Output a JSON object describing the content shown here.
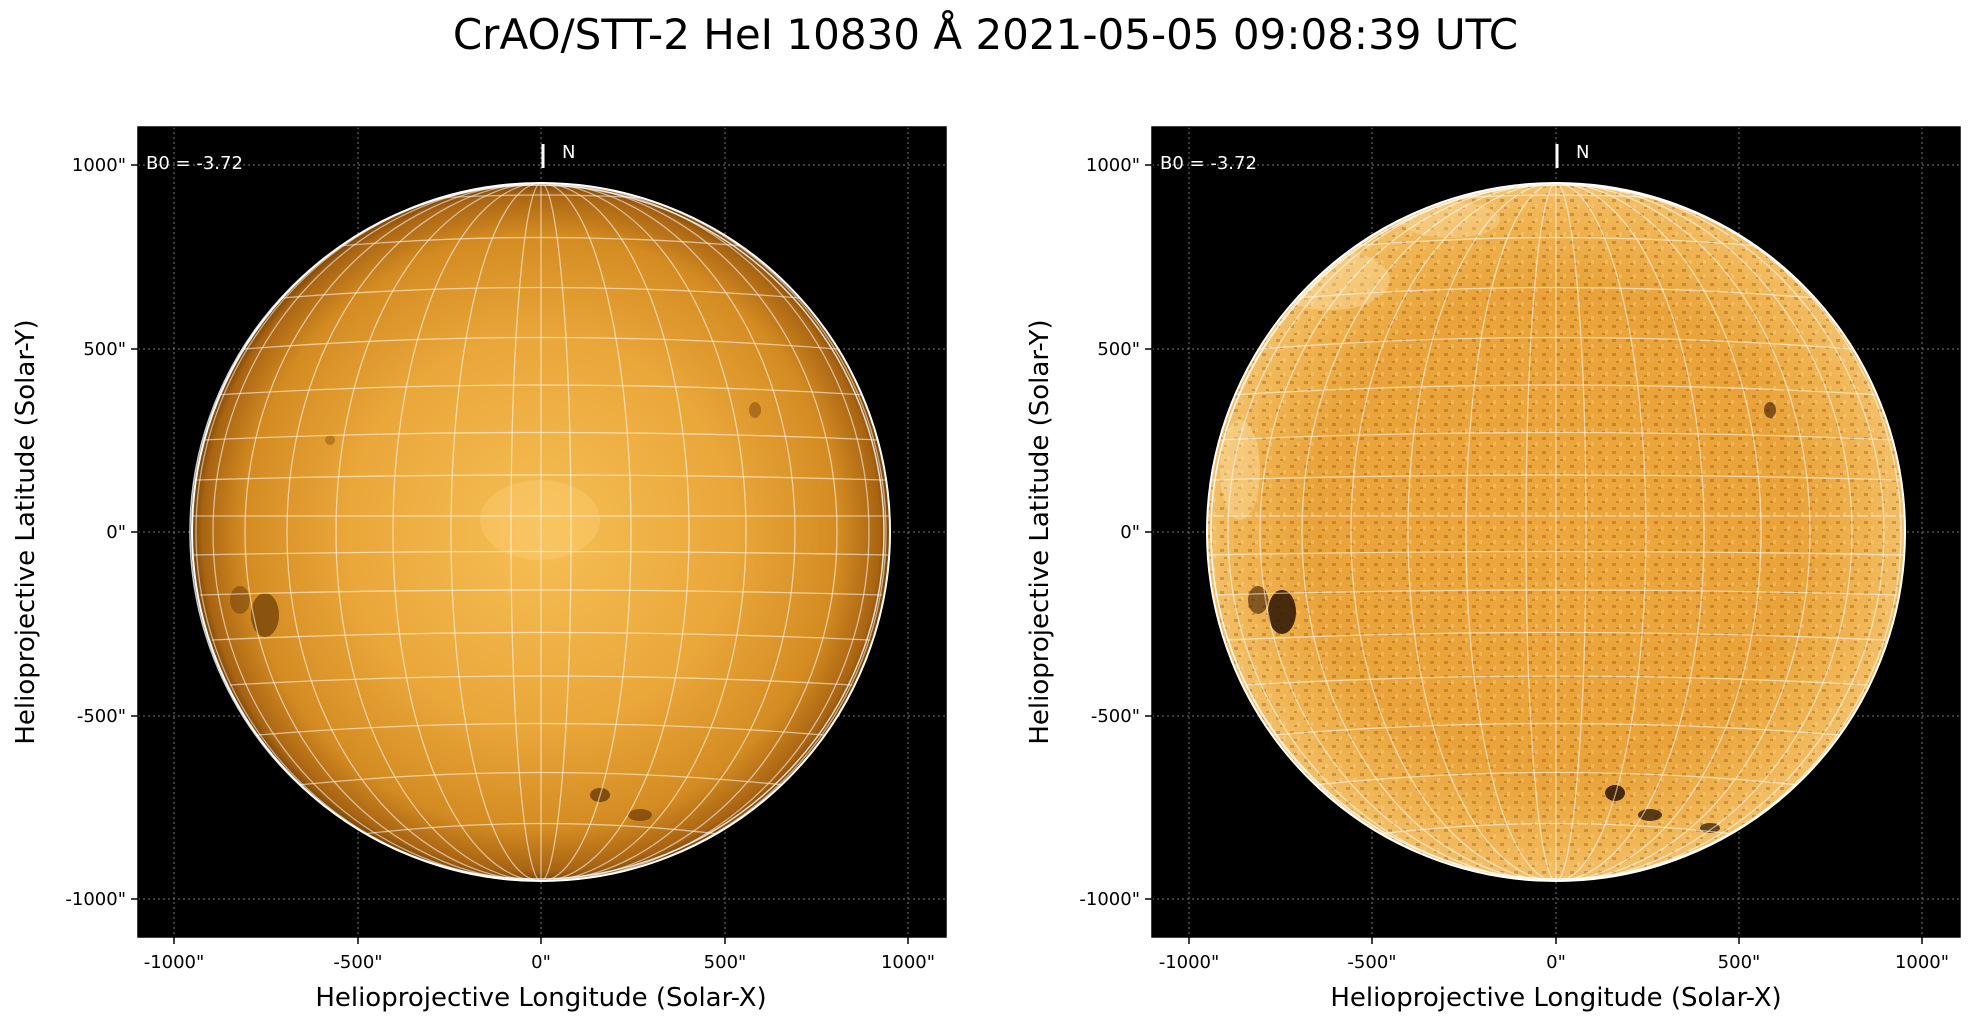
{
  "title": "CrAO/STT-2 HeI 10830 Å 2021-05-05 09:08:39 UTC",
  "colors": {
    "disk_core": "#f5b84a",
    "disk_mid": "#d98e22",
    "disk_limb": "#8a4f08",
    "grid": "#ffffff",
    "background": "#000000"
  },
  "panels": [
    {
      "name": "left",
      "b0_label": "B0 = -3.72",
      "north_label": "N",
      "xlabel": "Helioprojective Longitude (Solar-X)",
      "ylabel": "Helioprojective Latitude (Solar-Y)",
      "xticks": [
        "-1000\"",
        "-500\"",
        "0\"",
        "500\"",
        "1000\""
      ],
      "yticks": [
        "1000\"",
        "500\"",
        "0\"",
        "-500\"",
        "-1000\""
      ]
    },
    {
      "name": "right",
      "b0_label": "B0 = -3.72",
      "north_label": "N",
      "xlabel": "Helioprojective Longitude (Solar-X)",
      "ylabel": "Helioprojective Latitude (Solar-Y)",
      "xticks": [
        "-1000\"",
        "-500\"",
        "0\"",
        "500\"",
        "1000\""
      ],
      "yticks": [
        "1000\"",
        "500\"",
        "0\"",
        "-500\"",
        "-1000\""
      ]
    }
  ]
}
